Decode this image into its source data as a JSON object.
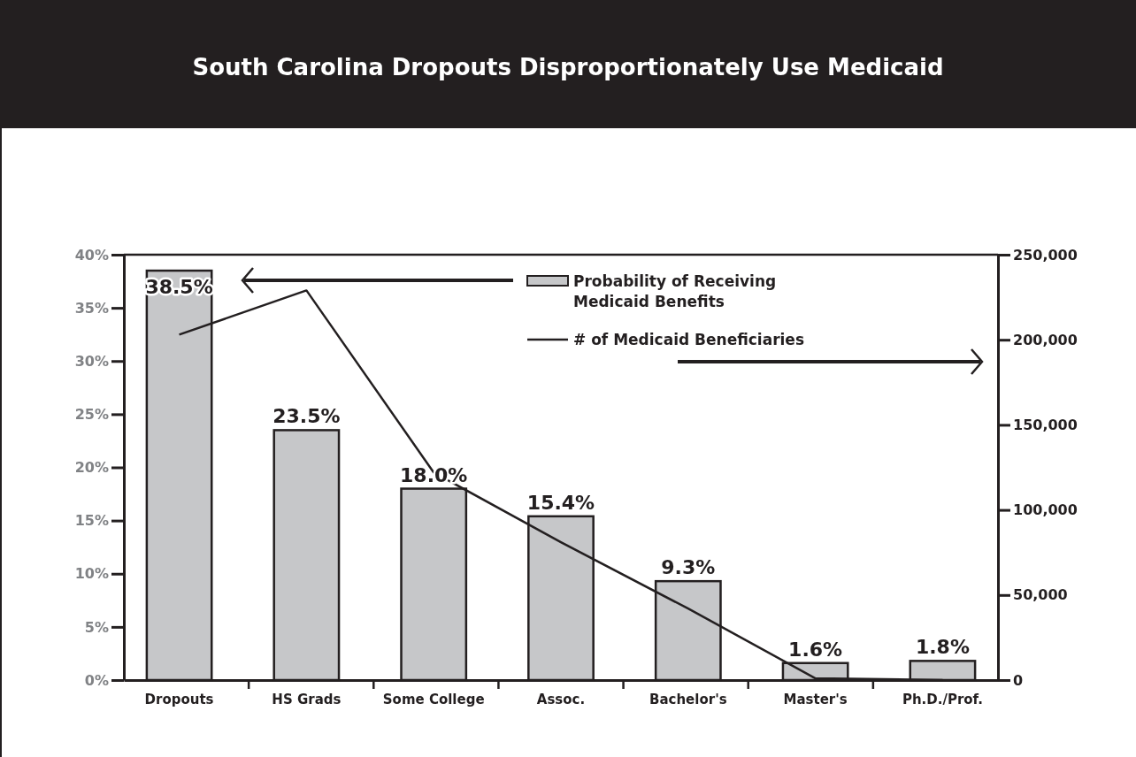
{
  "chart_data": {
    "type": "bar",
    "title": "South Carolina Dropouts Disproportionately Use Medicaid",
    "categories": [
      "Dropouts",
      "HS Grads",
      "Some College",
      "Assoc.",
      "Bachelor's",
      "Master's",
      "Ph.D./Prof."
    ],
    "series": [
      {
        "name": "Probability of Receiving Medicaid Benefits",
        "color": "#c6c7c9",
        "values": [
          38.5,
          23.5,
          18.0,
          15.4,
          9.3,
          1.6,
          1.8
        ],
        "value_labels": [
          "38.5%",
          "23.5%",
          "18.0%",
          "15.4%",
          "9.3%",
          "1.6%",
          "1.8%"
        ]
      },
      {
        "name": "# of Medicaid Beneficiaries",
        "type": "line",
        "axis": "y2",
        "color": "#231f20",
        "values": [
          203000,
          229000,
          122000,
          81000,
          42000,
          1000,
          0
        ]
      }
    ],
    "ylim": [
      0,
      40
    ],
    "yticks": [
      {
        "value": 0,
        "label": "0%"
      },
      {
        "value": 5,
        "label": "5%"
      },
      {
        "value": 10,
        "label": "10%"
      },
      {
        "value": 15,
        "label": "15%"
      },
      {
        "value": 20,
        "label": "20%"
      },
      {
        "value": 25,
        "label": "25%"
      },
      {
        "value": 30,
        "label": "30%"
      },
      {
        "value": 35,
        "label": "35%"
      },
      {
        "value": 40,
        "label": "40%"
      }
    ],
    "y2lim": [
      0,
      250000
    ],
    "y2ticks": [
      0,
      {
        "value": 50000,
        "label": "50,000"
      },
      {
        "value": 100000,
        "label": "100,000"
      },
      {
        "value": 150000,
        "label": "150,000"
      },
      {
        "value": 200000,
        "label": "200,000"
      },
      {
        "value": 250000,
        "label": "250,000"
      }
    ],
    "legend": "top",
    "grid": false,
    "marker": "none",
    "line_style": "solid"
  }
}
